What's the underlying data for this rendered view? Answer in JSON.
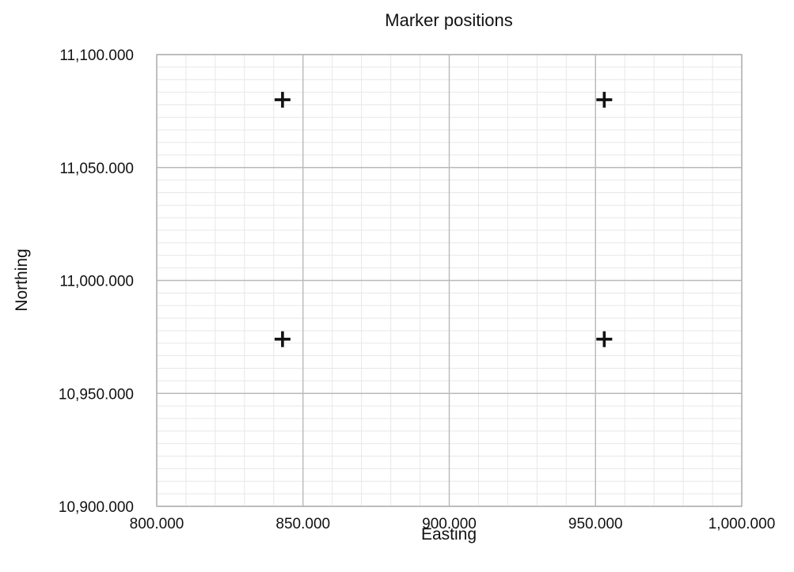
{
  "chart_data": {
    "type": "scatter",
    "title": "Marker positions",
    "xlabel": "Easting",
    "ylabel": "Northing",
    "xlim": [
      800,
      1000
    ],
    "ylim": [
      10900,
      11100
    ],
    "x_ticks": [
      800,
      850,
      900,
      950,
      1000
    ],
    "y_ticks": [
      10900,
      10950,
      11000,
      11050,
      11100
    ],
    "x_tick_labels": [
      "800.000",
      "850.000",
      "900.000",
      "950.000",
      "1,000.000"
    ],
    "y_tick_labels": [
      "10,900.000",
      "10,950.000",
      "11,000.000",
      "11,050.000",
      "11,100.000"
    ],
    "grid": true,
    "marker": "plus",
    "colors": {
      "marker": "#111111",
      "major_grid": "#b9b9b9",
      "minor_grid": "#e7e7e7",
      "frame": "#b0b0b0"
    },
    "points": [
      {
        "x": 843,
        "y": 11080
      },
      {
        "x": 953,
        "y": 11080
      },
      {
        "x": 843,
        "y": 10974
      },
      {
        "x": 953,
        "y": 10974
      }
    ]
  }
}
